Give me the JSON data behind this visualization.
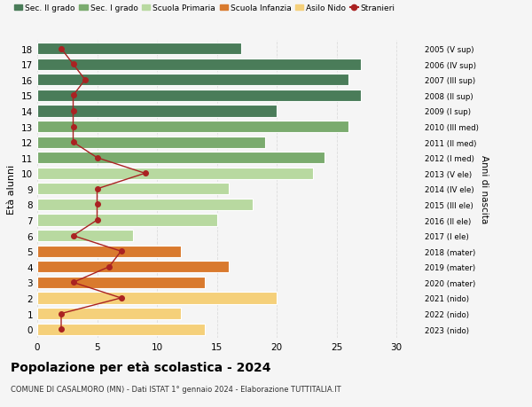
{
  "ages": [
    18,
    17,
    16,
    15,
    14,
    13,
    12,
    11,
    10,
    9,
    8,
    7,
    6,
    5,
    4,
    3,
    2,
    1,
    0
  ],
  "right_labels": [
    "2005 (V sup)",
    "2006 (IV sup)",
    "2007 (III sup)",
    "2008 (II sup)",
    "2009 (I sup)",
    "2010 (III med)",
    "2011 (II med)",
    "2012 (I med)",
    "2013 (V ele)",
    "2014 (IV ele)",
    "2015 (III ele)",
    "2016 (II ele)",
    "2017 (I ele)",
    "2018 (mater)",
    "2019 (mater)",
    "2020 (mater)",
    "2021 (nido)",
    "2022 (nido)",
    "2023 (nido)"
  ],
  "bar_values": [
    17,
    27,
    26,
    27,
    20,
    26,
    19,
    24,
    23,
    16,
    18,
    15,
    8,
    12,
    16,
    14,
    20,
    12,
    14
  ],
  "bar_colors": [
    "#4a7c59",
    "#4a7c59",
    "#4a7c59",
    "#4a7c59",
    "#4a7c59",
    "#7aab6e",
    "#7aab6e",
    "#7aab6e",
    "#b8d9a0",
    "#b8d9a0",
    "#b8d9a0",
    "#b8d9a0",
    "#b8d9a0",
    "#d97a2e",
    "#d97a2e",
    "#d97a2e",
    "#f5d07a",
    "#f5d07a",
    "#f5d07a"
  ],
  "stranieri_values": [
    2,
    3,
    4,
    3,
    3,
    3,
    3,
    5,
    9,
    5,
    5,
    5,
    3,
    7,
    6,
    3,
    7,
    2,
    2
  ],
  "title": "Popolazione per età scolastica - 2024",
  "subtitle": "COMUNE DI CASALMORO (MN) - Dati ISTAT 1° gennaio 2024 - Elaborazione TUTTITALIA.IT",
  "ylabel": "Età alunni",
  "right_ylabel": "Anni di nascita",
  "xlim": [
    0,
    32
  ],
  "legend_labels": [
    "Sec. II grado",
    "Sec. I grado",
    "Scuola Primaria",
    "Scuola Infanzia",
    "Asilo Nido",
    "Stranieri"
  ],
  "legend_colors": [
    "#4a7c59",
    "#7aab6e",
    "#b8d9a0",
    "#d97a2e",
    "#f5d07a",
    "#b22222"
  ],
  "bg_color": "#f5f5f5",
  "bar_height": 0.75,
  "stranieri_line_color": "#aa2222",
  "grid_color": "#dddddd"
}
